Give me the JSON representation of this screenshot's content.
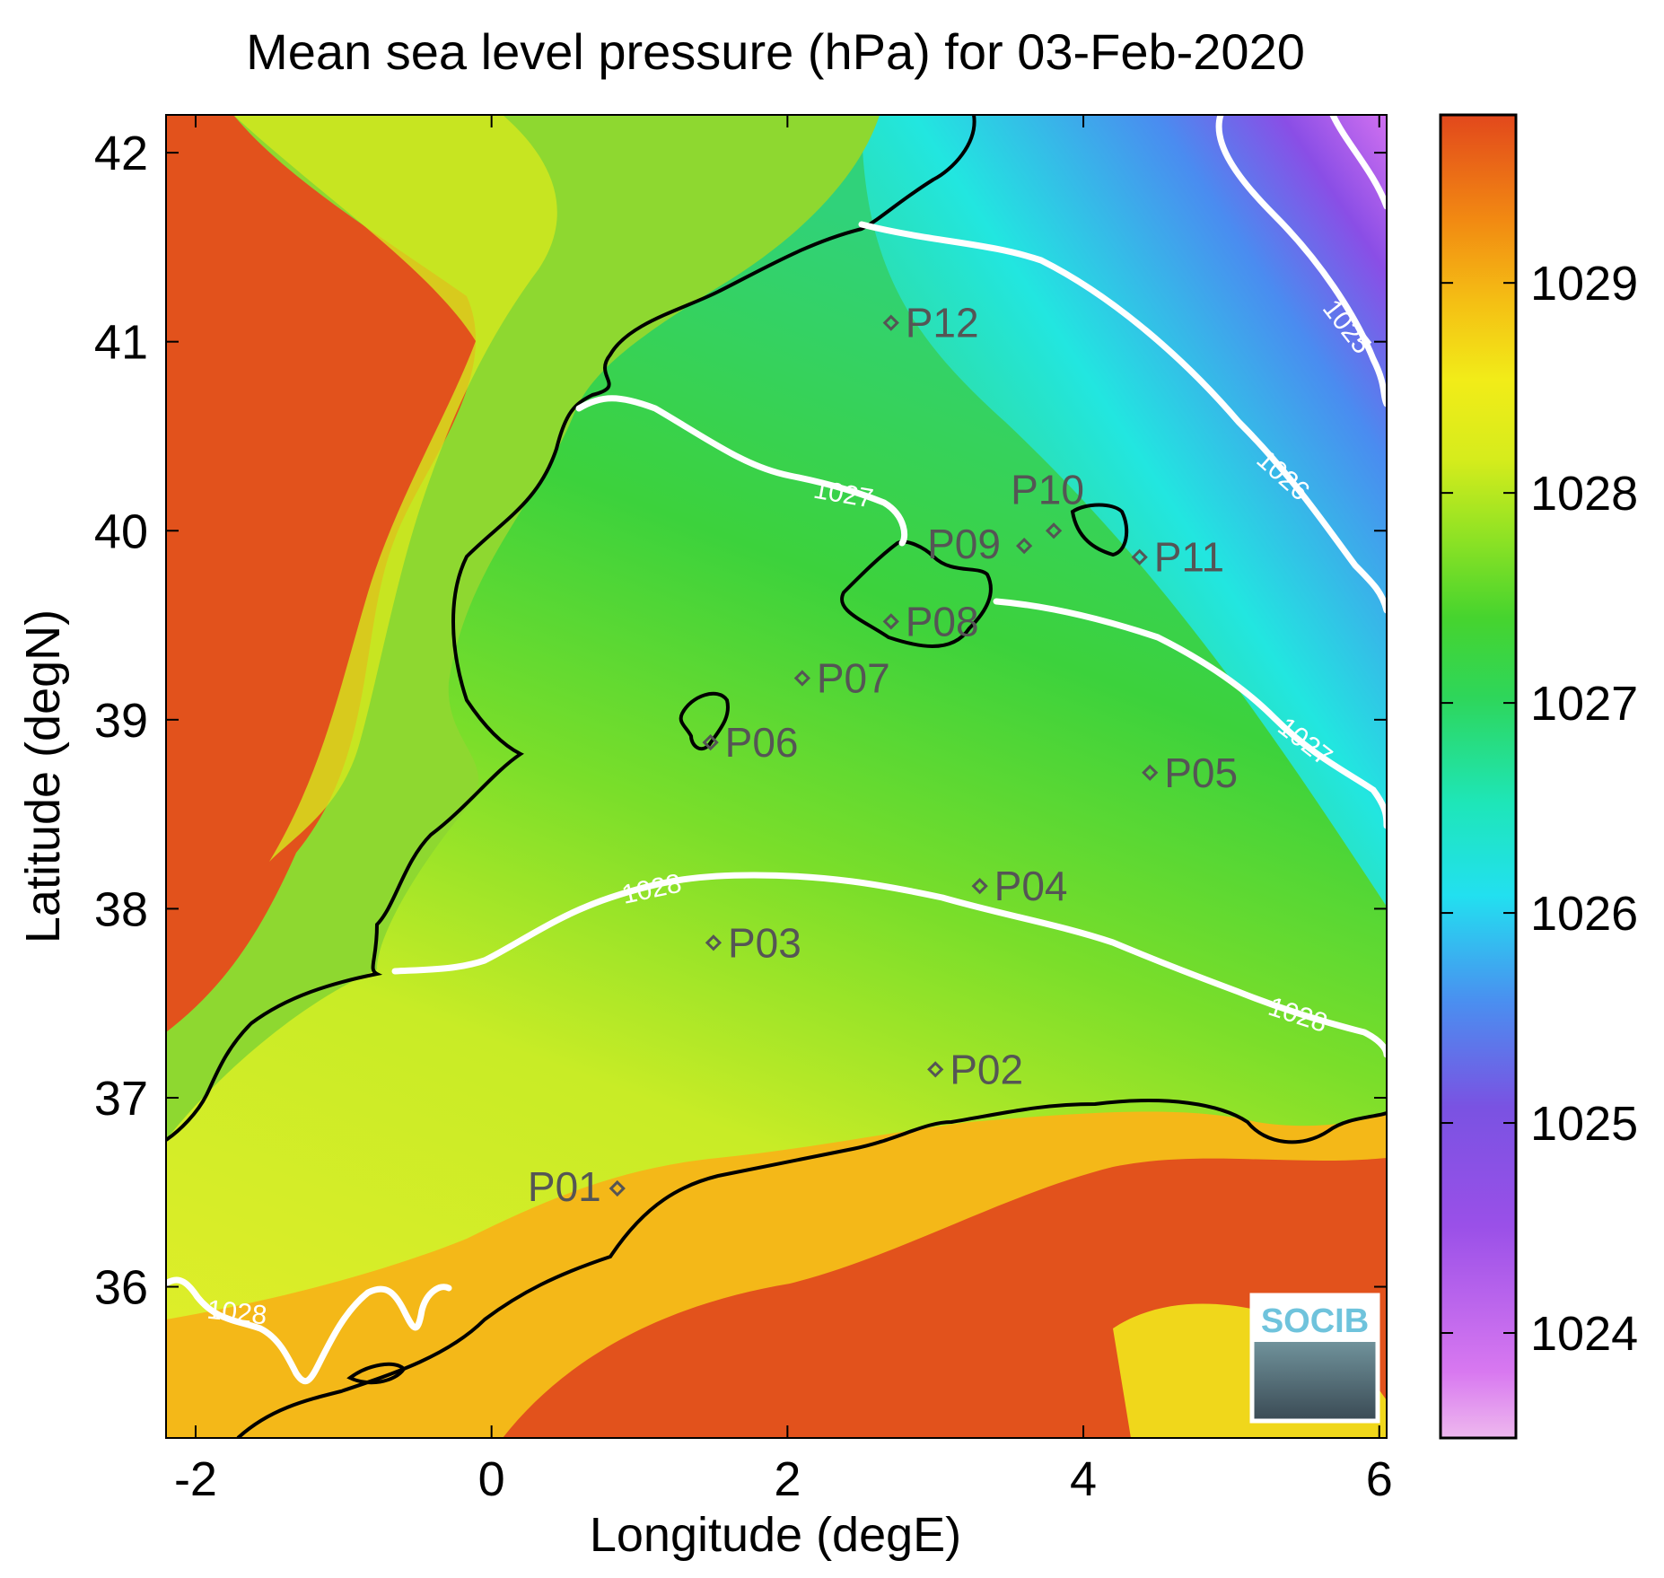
{
  "chart_data": {
    "type": "heatmap",
    "title": "Mean sea level pressure (hPa) for 03-Feb-2020",
    "xlabel": "Longitude (degE)",
    "ylabel": "Latitude (degN)",
    "xlim": [
      -2.2,
      6.05
    ],
    "ylim": [
      35.2,
      42.2
    ],
    "x_ticks": [
      -2,
      0,
      2,
      4,
      6
    ],
    "y_ticks": [
      36,
      37,
      38,
      39,
      40,
      41,
      42
    ],
    "x_tick_labels": [
      "-2",
      "0",
      "2",
      "4",
      "6"
    ],
    "y_tick_labels": [
      "36",
      "37",
      "38",
      "39",
      "40",
      "41",
      "42"
    ],
    "colorbar": {
      "range": [
        1023.5,
        1029.8
      ],
      "ticks": [
        1024,
        1025,
        1026,
        1027,
        1028,
        1029
      ],
      "tick_labels": [
        "1024",
        "1025",
        "1026",
        "1027",
        "1028",
        "1029"
      ]
    },
    "stations": [
      {
        "label": "P01",
        "lon": 0.85,
        "lat": 36.52
      },
      {
        "label": "P02",
        "lon": 3.0,
        "lat": 37.15
      },
      {
        "label": "P03",
        "lon": 1.5,
        "lat": 37.82
      },
      {
        "label": "P04",
        "lon": 3.3,
        "lat": 38.12
      },
      {
        "label": "P05",
        "lon": 4.45,
        "lat": 38.72
      },
      {
        "label": "P06",
        "lon": 1.48,
        "lat": 38.88
      },
      {
        "label": "P07",
        "lon": 2.1,
        "lat": 39.22
      },
      {
        "label": "P08",
        "lon": 2.7,
        "lat": 39.52
      },
      {
        "label": "P09",
        "lon": 3.6,
        "lat": 39.92
      },
      {
        "label": "P10",
        "lon": 3.8,
        "lat": 40.0
      },
      {
        "label": "P11",
        "lon": 4.38,
        "lat": 39.86
      },
      {
        "label": "P12",
        "lon": 2.7,
        "lat": 41.1
      }
    ],
    "contours": [
      {
        "level": 1025,
        "label": "1025"
      },
      {
        "level": 1026,
        "label": "1026"
      },
      {
        "level": 1027,
        "label": "1027"
      },
      {
        "level": 1028,
        "label": "1028"
      }
    ],
    "logo_text": "SOCIB",
    "colors": {
      "land_high": "#e2521c",
      "sea_green": "#33cc33",
      "yellow": "#e6f01e",
      "cyan": "#1ee6dc",
      "purple": "#7f46e0",
      "magenta": "#d878f0",
      "contour": "#ffffff",
      "coastline": "#000000",
      "station": "#555555"
    }
  }
}
